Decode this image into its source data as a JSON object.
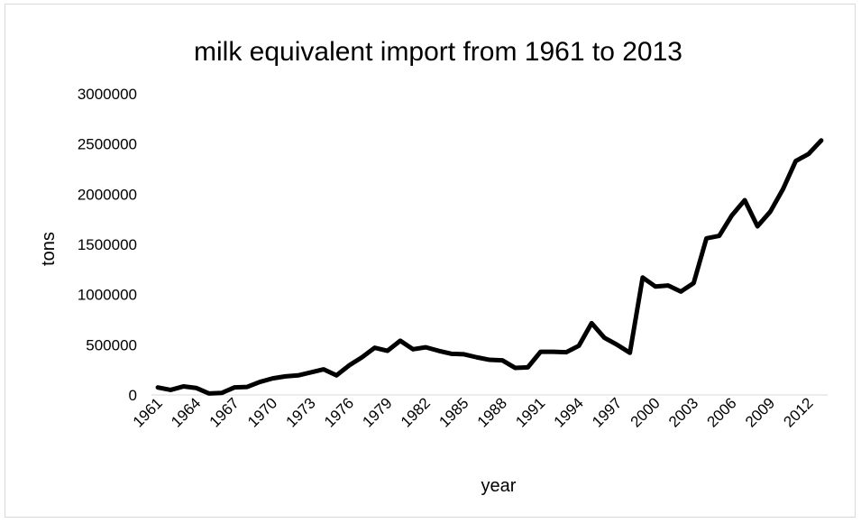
{
  "chart_data": {
    "type": "line",
    "title": "milk equivalent import from 1961 to 2013",
    "xlabel": "year",
    "ylabel": "tons",
    "ylim": [
      0,
      3000000
    ],
    "ytick_labels": [
      "0",
      "500000",
      "1000000",
      "1500000",
      "2000000",
      "2500000",
      "3000000"
    ],
    "ytick_values": [
      0,
      500000,
      1000000,
      1500000,
      2000000,
      2500000,
      3000000
    ],
    "xtick_labels": [
      "1961",
      "1964",
      "1967",
      "1970",
      "1973",
      "1976",
      "1979",
      "1982",
      "1985",
      "1988",
      "1991",
      "1994",
      "1997",
      "2000",
      "2003",
      "2006",
      "2009",
      "2012"
    ],
    "grid": false,
    "legend": "none",
    "line_color": "#000000",
    "x": [
      1961,
      1962,
      1963,
      1964,
      1965,
      1966,
      1967,
      1968,
      1969,
      1970,
      1971,
      1972,
      1973,
      1974,
      1975,
      1976,
      1977,
      1978,
      1979,
      1980,
      1981,
      1982,
      1983,
      1984,
      1985,
      1986,
      1987,
      1988,
      1989,
      1990,
      1991,
      1992,
      1993,
      1994,
      1995,
      1996,
      1997,
      1998,
      1999,
      2000,
      2001,
      2002,
      2003,
      2004,
      2005,
      2006,
      2007,
      2008,
      2009,
      2010,
      2011,
      2012,
      2013
    ],
    "values": [
      75000,
      50000,
      85000,
      70000,
      15000,
      20000,
      75000,
      80000,
      130000,
      165000,
      185000,
      195000,
      225000,
      255000,
      195000,
      295000,
      375000,
      470000,
      440000,
      540000,
      455000,
      475000,
      440000,
      410000,
      405000,
      375000,
      350000,
      345000,
      270000,
      275000,
      430000,
      430000,
      425000,
      490000,
      715000,
      570000,
      500000,
      420000,
      1170000,
      1080000,
      1090000,
      1030000,
      1115000,
      1560000,
      1585000,
      1790000,
      1940000,
      1680000,
      1825000,
      2050000,
      2330000,
      2400000,
      2535000
    ]
  }
}
